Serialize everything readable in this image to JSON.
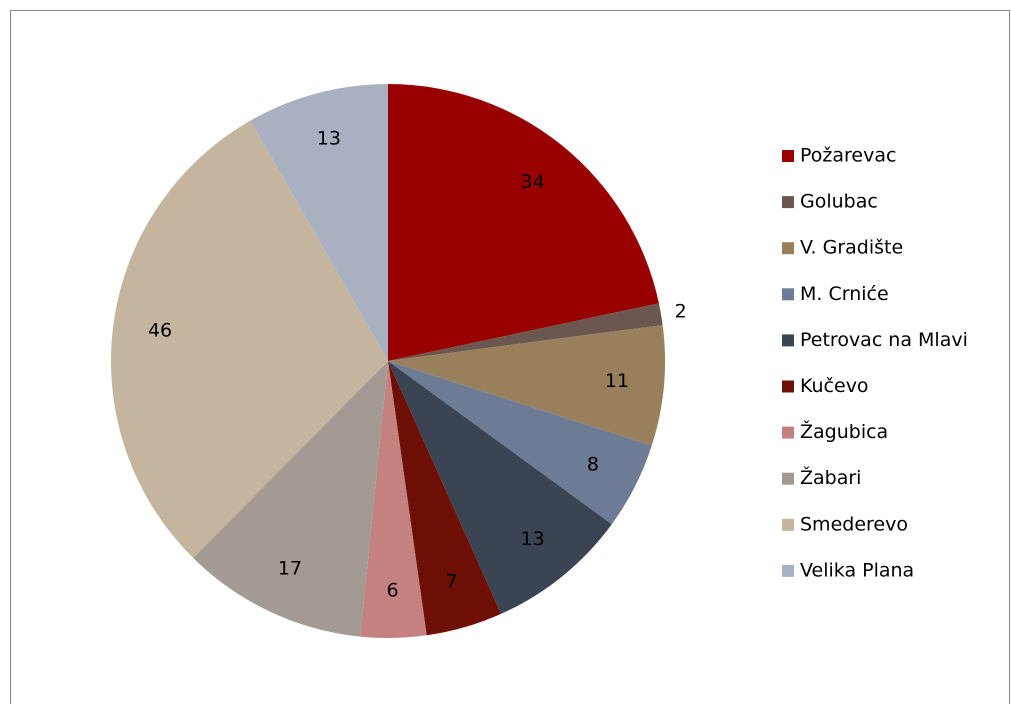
{
  "chart_data": {
    "type": "pie",
    "categories": [
      "Požarevac",
      "Golubac",
      "V. Gradište",
      "M. Crniće",
      "Petrovac na Mlavi",
      "Kučevo",
      "Žagubica",
      "Žabari",
      "Smederevo",
      "Velika Plana"
    ],
    "values": [
      34,
      2,
      11,
      8,
      13,
      7,
      6,
      17,
      46,
      13
    ],
    "colors": [
      "#990000",
      "#6b5750",
      "#98805c",
      "#6e7b94",
      "#3a4453",
      "#6d0f04",
      "#c58080",
      "#a39a93",
      "#c5b49e",
      "#a9b0c2"
    ],
    "legend": "right"
  }
}
